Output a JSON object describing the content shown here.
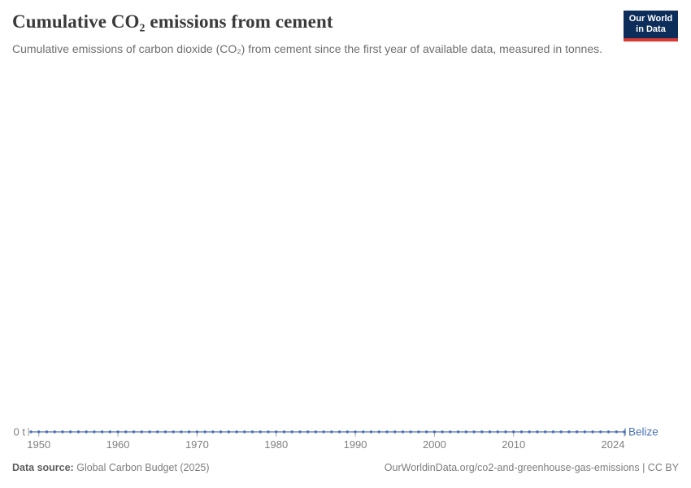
{
  "header": {
    "title": "Cumulative CO₂ emissions from cement",
    "subtitle": "Cumulative emissions of carbon dioxide (CO₂) from cement since the first year of available data, measured in tonnes.",
    "logo": {
      "line1": "Our World",
      "line2": "in Data",
      "bg_color": "#0d2e5a",
      "bar_color": "#d73a32"
    }
  },
  "chart_data": {
    "type": "line",
    "title": "Cumulative CO₂ emissions from cement",
    "entity": "Belize",
    "unit": "t",
    "zero_axis_label": "0 t",
    "x_range": [
      1949,
      2024
    ],
    "y_range": [
      0,
      0
    ],
    "grid": false,
    "legend_position": "end-of-line-label",
    "x_ticks": [
      1950,
      1960,
      1970,
      1980,
      1990,
      2000,
      2010,
      2024
    ],
    "x": [
      1949,
      1950,
      1951,
      1952,
      1953,
      1954,
      1955,
      1956,
      1957,
      1958,
      1959,
      1960,
      1961,
      1962,
      1963,
      1964,
      1965,
      1966,
      1967,
      1968,
      1969,
      1970,
      1971,
      1972,
      1973,
      1974,
      1975,
      1976,
      1977,
      1978,
      1979,
      1980,
      1981,
      1982,
      1983,
      1984,
      1985,
      1986,
      1987,
      1988,
      1989,
      1990,
      1991,
      1992,
      1993,
      1994,
      1995,
      1996,
      1997,
      1998,
      1999,
      2000,
      2001,
      2002,
      2003,
      2004,
      2005,
      2006,
      2007,
      2008,
      2009,
      2010,
      2011,
      2012,
      2013,
      2014,
      2015,
      2016,
      2017,
      2018,
      2019,
      2020,
      2021,
      2022,
      2023,
      2024
    ],
    "values": [
      0,
      0,
      0,
      0,
      0,
      0,
      0,
      0,
      0,
      0,
      0,
      0,
      0,
      0,
      0,
      0,
      0,
      0,
      0,
      0,
      0,
      0,
      0,
      0,
      0,
      0,
      0,
      0,
      0,
      0,
      0,
      0,
      0,
      0,
      0,
      0,
      0,
      0,
      0,
      0,
      0,
      0,
      0,
      0,
      0,
      0,
      0,
      0,
      0,
      0,
      0,
      0,
      0,
      0,
      0,
      0,
      0,
      0,
      0,
      0,
      0,
      0,
      0,
      0,
      0,
      0,
      0,
      0,
      0,
      0,
      0,
      0,
      0,
      0,
      0,
      0
    ],
    "line_color": "#4a70b2",
    "entity_label_color": "#4e74b3",
    "axis_text_color": "#808080",
    "tick_mark_color": "#a8a8a8"
  },
  "footer": {
    "data_source_label": "Data source:",
    "data_source_value": "Global Carbon Budget (2025)",
    "link_text": "OurWorldinData.org/co2-and-greenhouse-gas-emissions | CC BY"
  }
}
